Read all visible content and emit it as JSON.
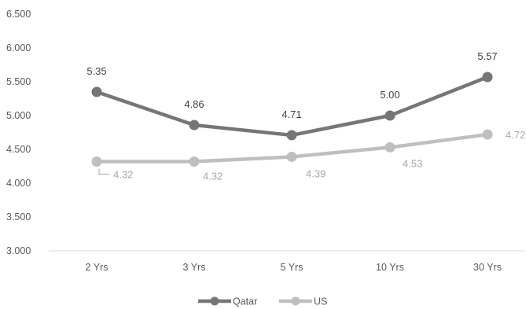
{
  "chart_data": {
    "type": "line",
    "categories": [
      "2 Yrs",
      "3 Yrs",
      "5 Yrs",
      "10 Yrs",
      "30 Yrs"
    ],
    "series": [
      {
        "name": "Qatar",
        "values": [
          5.35,
          4.86,
          4.71,
          5.0,
          5.57
        ],
        "labels": [
          "5.35",
          "4.86",
          "4.71",
          "5.00",
          "5.57"
        ],
        "color": "#767676",
        "label_color": "#404040"
      },
      {
        "name": "US",
        "values": [
          4.32,
          4.32,
          4.39,
          4.53,
          4.72
        ],
        "labels": [
          "4.32",
          "4.32",
          "4.39",
          "4.53",
          "4.72"
        ],
        "color": "#bfbfbf",
        "label_color": "#a6a6a6"
      }
    ],
    "yticks": [
      "3.000",
      "3.500",
      "4.000",
      "4.500",
      "5.000",
      "5.500",
      "6.000",
      "6.500"
    ],
    "ylim": [
      3.0,
      6.5
    ],
    "title": "",
    "xlabel": "",
    "ylabel": "",
    "grid": false,
    "legend_position": "bottom"
  }
}
